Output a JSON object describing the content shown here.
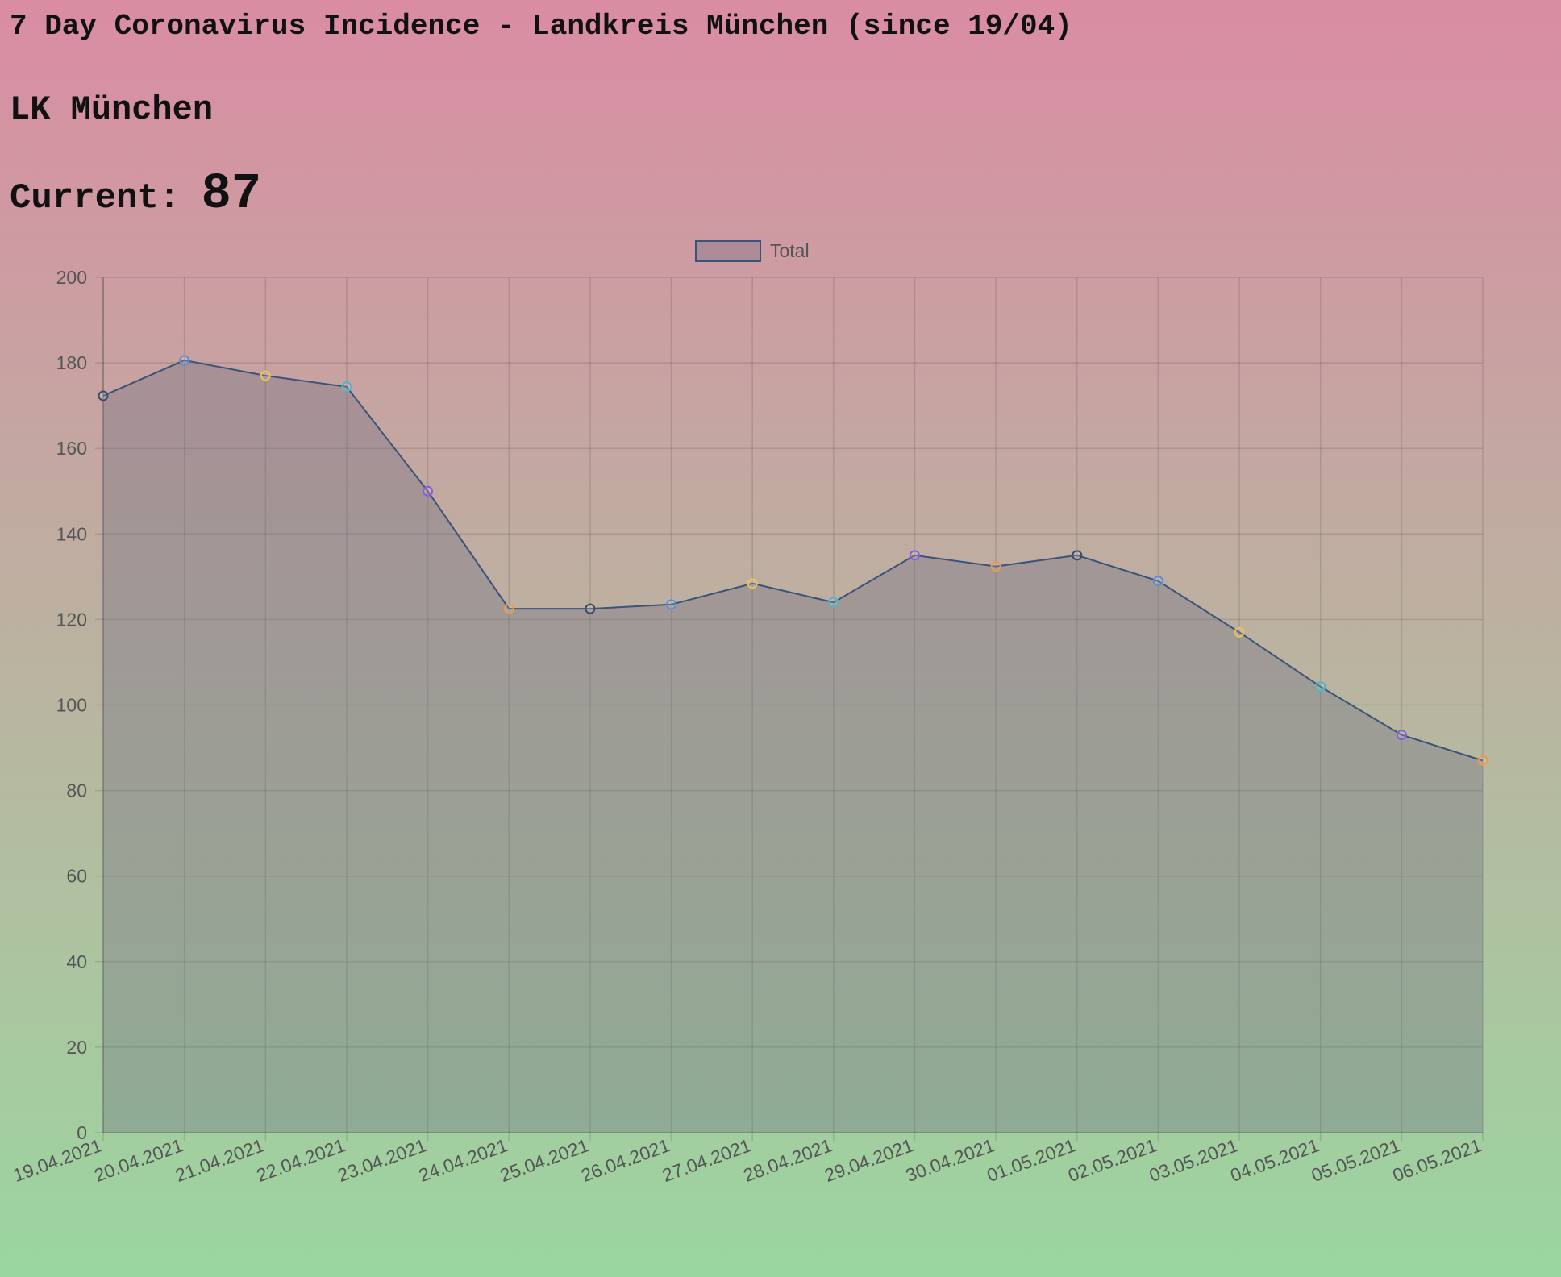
{
  "header": {
    "title": "7 Day Coronavirus Incidence - Landkreis München (since 19/04)",
    "region": "LK München",
    "current_label": "Current:",
    "current_value": "87"
  },
  "chart_data": {
    "type": "area",
    "categories": [
      "19.04.2021",
      "20.04.2021",
      "21.04.2021",
      "22.04.2021",
      "23.04.2021",
      "24.04.2021",
      "25.04.2021",
      "26.04.2021",
      "27.04.2021",
      "28.04.2021",
      "29.04.2021",
      "30.04.2021",
      "01.05.2021",
      "02.05.2021",
      "03.05.2021",
      "04.05.2021",
      "05.05.2021",
      "06.05.2021"
    ],
    "series": [
      {
        "name": "Total",
        "values": [
          172.3,
          180.6,
          177.0,
          174.4,
          150.0,
          122.5,
          122.5,
          123.5,
          128.4,
          124.0,
          135.0,
          132.4,
          135.0,
          129.0,
          117.0,
          104.3,
          93.0,
          87.0
        ],
        "line_color": "#3a5378",
        "fill_color": "rgba(110,110,130,0.35)"
      }
    ],
    "point_colors": [
      "#3a4a6a",
      "#5a8ed6",
      "#e8c25a",
      "#52b6c4",
      "#8a5ae0",
      "#e89a50",
      "#3a4a6a",
      "#5a8ed6",
      "#e8c25a",
      "#52b6c4",
      "#8a5ae0",
      "#e89a50",
      "#3a4a6a",
      "#5a8ed6",
      "#e8c25a",
      "#52b6c4",
      "#8a5ae0",
      "#e89a50"
    ],
    "ylim": [
      0,
      200
    ],
    "yticks": [
      0,
      20,
      40,
      60,
      80,
      100,
      120,
      140,
      160,
      180,
      200
    ],
    "grid": true,
    "legend_position": "top"
  }
}
